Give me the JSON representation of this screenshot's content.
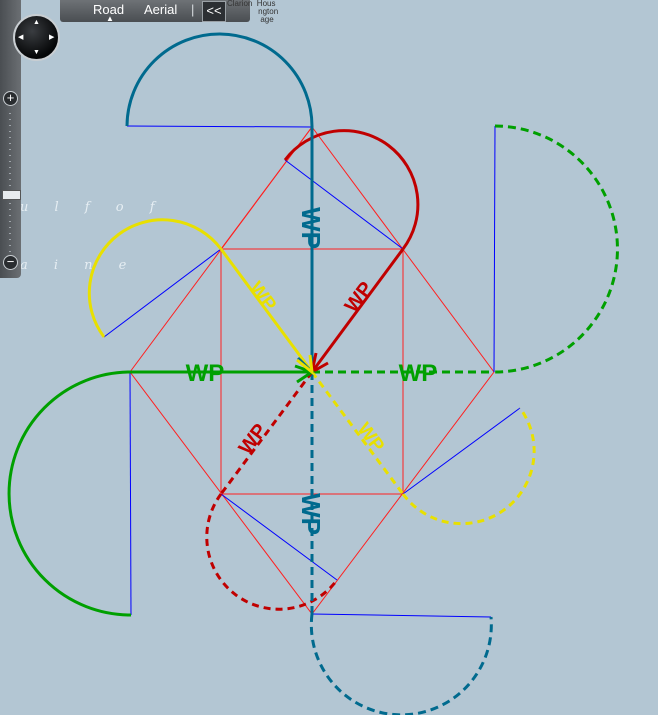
{
  "map_controls": {
    "tabs": [
      {
        "label": "Road",
        "selected": true
      },
      {
        "label": "Aerial",
        "selected": false
      }
    ],
    "separator": "|",
    "collapse_label": "<<",
    "attribution": "Clarion  Hous\n              ngton\n               age",
    "zoom_in_label": "+",
    "zoom_out_label": "−"
  },
  "map_labels": {
    "line1": "u l f   o f",
    "line2": "a i n e"
  },
  "waypoints": [
    {
      "label": "WP",
      "color": "#006a8e",
      "style": "solid"
    },
    {
      "label": "WP",
      "color": "#c00000",
      "style": "solid"
    },
    {
      "label": "WP",
      "color": "#00a000",
      "style": "dashed"
    },
    {
      "label": "WP",
      "color": "#e8e000",
      "style": "dashed"
    },
    {
      "label": "WP",
      "color": "#006a8e",
      "style": "dashed"
    },
    {
      "label": "WP",
      "color": "#c00000",
      "style": "dashed"
    },
    {
      "label": "WP",
      "color": "#00a000",
      "style": "solid"
    },
    {
      "label": "WP",
      "color": "#e8e000",
      "style": "solid"
    }
  ],
  "colors": {
    "water": "#b3c6d3",
    "guide_red": "#ff2020",
    "guide_blue": "#0000ff"
  }
}
